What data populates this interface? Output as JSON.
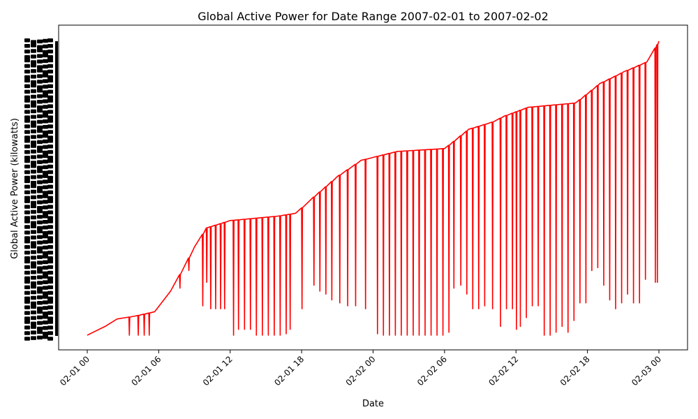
{
  "chart_data": {
    "type": "line",
    "title": "Global Active Power for Date Range 2007-02-01 to 2007-02-02",
    "xlabel": "Date",
    "ylabel": "Global Active Power (kilowatts)",
    "xlim": [
      "2007-02-01 00:00",
      "2007-02-03 00:00"
    ],
    "x_ticks": [
      "02-01 00",
      "02-01 06",
      "02-01 12",
      "02-01 18",
      "02-02 00",
      "02-02 06",
      "02-02 12",
      "02-02 18",
      "02-03 00"
    ],
    "y_tick_labels_note": "overlapping unreadable categorical labels",
    "grid": false,
    "series": [
      {
        "color": "#ff0000",
        "baseline": [
          [
            "2007-02-01 00:00",
            0.0
          ],
          [
            "2007-02-01 01:30",
            3.0
          ],
          [
            "2007-02-01 02:30",
            5.5
          ],
          [
            "2007-02-01 04:00",
            6.5
          ],
          [
            "2007-02-01 05:40",
            8.0
          ],
          [
            "2007-02-01 07:00",
            15.0
          ],
          [
            "2007-02-01 09:00",
            30.0
          ],
          [
            "2007-02-01 10:00",
            36.5
          ],
          [
            "2007-02-01 12:00",
            39.0
          ],
          [
            "2007-02-01 16:00",
            40.5
          ],
          [
            "2007-02-01 17:30",
            41.5
          ],
          [
            "2007-02-01 19:00",
            47.0
          ],
          [
            "2007-02-01 21:00",
            54.0
          ],
          [
            "2007-02-01 23:00",
            59.5
          ],
          [
            "2007-02-02 02:00",
            62.5
          ],
          [
            "2007-02-02 06:00",
            63.5
          ],
          [
            "2007-02-02 08:00",
            70.0
          ],
          [
            "2007-02-02 10:00",
            72.5
          ],
          [
            "2007-02-02 11:00",
            74.5
          ],
          [
            "2007-02-02 13:00",
            77.5
          ],
          [
            "2007-02-02 17:00",
            79.0
          ],
          [
            "2007-02-02 19:00",
            85.5
          ],
          [
            "2007-02-02 21:00",
            89.5
          ],
          [
            "2007-02-02 23:00",
            93.0
          ],
          [
            "2007-02-03 00:00",
            100.0
          ]
        ],
        "drops": [
          [
            "2007-02-01 03:30",
            0.0
          ],
          [
            "2007-02-01 04:15",
            0.0
          ],
          [
            "2007-02-01 04:45",
            0.0
          ],
          [
            "2007-02-01 05:10",
            0.0
          ],
          [
            "2007-02-01 07:45",
            16.0
          ],
          [
            "2007-02-01 08:30",
            22.0
          ],
          [
            "2007-02-01 09:40",
            10.0
          ],
          [
            "2007-02-01 10:00",
            18.0
          ],
          [
            "2007-02-01 10:20",
            9.0
          ],
          [
            "2007-02-01 10:45",
            9.0
          ],
          [
            "2007-02-01 11:10",
            9.0
          ],
          [
            "2007-02-01 11:30",
            9.0
          ],
          [
            "2007-02-01 12:15",
            0.0
          ],
          [
            "2007-02-01 12:40",
            2.0
          ],
          [
            "2007-02-01 13:10",
            2.0
          ],
          [
            "2007-02-01 13:40",
            2.0
          ],
          [
            "2007-02-01 14:10",
            0.0
          ],
          [
            "2007-02-01 14:40",
            0.0
          ],
          [
            "2007-02-01 15:10",
            0.0
          ],
          [
            "2007-02-01 15:40",
            0.0
          ],
          [
            "2007-02-01 16:10",
            0.0
          ],
          [
            "2007-02-01 16:40",
            0.5
          ],
          [
            "2007-02-01 17:00",
            2.0
          ],
          [
            "2007-02-01 18:00",
            9.0
          ],
          [
            "2007-02-01 19:00",
            17.0
          ],
          [
            "2007-02-01 19:30",
            15.0
          ],
          [
            "2007-02-01 20:00",
            14.0
          ],
          [
            "2007-02-01 20:30",
            12.0
          ],
          [
            "2007-02-01 21:10",
            11.0
          ],
          [
            "2007-02-01 21:50",
            10.0
          ],
          [
            "2007-02-01 22:30",
            10.0
          ],
          [
            "2007-02-01 23:20",
            9.0
          ],
          [
            "2007-02-02 00:20",
            0.5
          ],
          [
            "2007-02-02 00:50",
            0.0
          ],
          [
            "2007-02-02 01:20",
            0.0
          ],
          [
            "2007-02-02 01:50",
            0.0
          ],
          [
            "2007-02-02 02:20",
            0.0
          ],
          [
            "2007-02-02 02:50",
            0.0
          ],
          [
            "2007-02-02 03:20",
            0.0
          ],
          [
            "2007-02-02 03:50",
            0.0
          ],
          [
            "2007-02-02 04:20",
            0.0
          ],
          [
            "2007-02-02 04:50",
            0.0
          ],
          [
            "2007-02-02 05:20",
            0.0
          ],
          [
            "2007-02-02 05:50",
            0.0
          ],
          [
            "2007-02-02 06:20",
            1.0
          ],
          [
            "2007-02-02 06:45",
            16.0
          ],
          [
            "2007-02-02 07:20",
            17.0
          ],
          [
            "2007-02-02 07:50",
            14.0
          ],
          [
            "2007-02-02 08:20",
            9.0
          ],
          [
            "2007-02-02 08:50",
            9.0
          ],
          [
            "2007-02-02 09:20",
            10.0
          ],
          [
            "2007-02-02 10:00",
            9.0
          ],
          [
            "2007-02-02 10:40",
            3.0
          ],
          [
            "2007-02-02 11:10",
            9.0
          ],
          [
            "2007-02-02 11:40",
            9.0
          ],
          [
            "2007-02-02 12:00",
            2.0
          ],
          [
            "2007-02-02 12:20",
            3.0
          ],
          [
            "2007-02-02 12:50",
            6.0
          ],
          [
            "2007-02-02 13:20",
            10.0
          ],
          [
            "2007-02-02 13:50",
            10.0
          ],
          [
            "2007-02-02 14:20",
            0.0
          ],
          [
            "2007-02-02 14:50",
            0.0
          ],
          [
            "2007-02-02 15:20",
            1.0
          ],
          [
            "2007-02-02 15:50",
            3.0
          ],
          [
            "2007-02-02 16:20",
            1.0
          ],
          [
            "2007-02-02 16:50",
            5.0
          ],
          [
            "2007-02-02 17:20",
            11.0
          ],
          [
            "2007-02-02 17:50",
            11.0
          ],
          [
            "2007-02-02 18:20",
            22.0
          ],
          [
            "2007-02-02 18:50",
            23.0
          ],
          [
            "2007-02-02 19:20",
            17.0
          ],
          [
            "2007-02-02 19:50",
            12.0
          ],
          [
            "2007-02-02 20:20",
            9.0
          ],
          [
            "2007-02-02 20:50",
            11.0
          ],
          [
            "2007-02-02 21:20",
            14.0
          ],
          [
            "2007-02-02 21:50",
            11.0
          ],
          [
            "2007-02-02 22:20",
            11.0
          ],
          [
            "2007-02-02 22:50",
            19.0
          ],
          [
            "2007-02-02 23:40",
            18.0
          ],
          [
            "2007-02-02 23:50",
            18.0
          ]
        ]
      }
    ]
  }
}
